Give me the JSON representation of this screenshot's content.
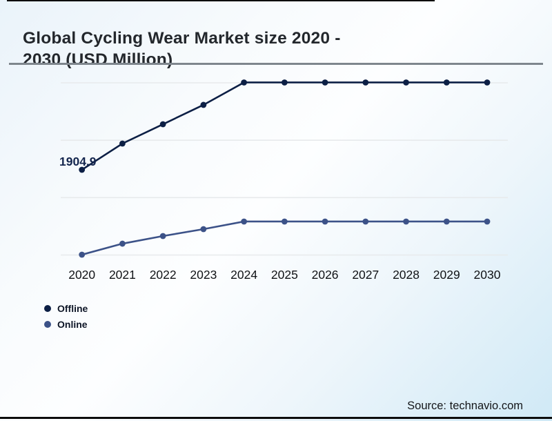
{
  "header": {
    "title_lines": [
      "Global Cycling Wear Market size 2020 -",
      "2030 (USD Million)"
    ]
  },
  "chart_data": {
    "type": "line",
    "title": "Global Cycling Wear Market size 2020 - 2030 (USD Million)",
    "categories": [
      "2020",
      "2021",
      "2022",
      "2023",
      "2024",
      "2025",
      "2026",
      "2027",
      "2028",
      "2029",
      "2030"
    ],
    "series": [
      {
        "name": "Offline",
        "color": "#0c1f45",
        "values": [
          1904.9,
          2360,
          2695,
          3031,
          3420,
          3420,
          3420,
          3420,
          3420,
          3420,
          3420
        ]
      },
      {
        "name": "Online",
        "color": "#3c5288",
        "values": [
          432,
          623,
          755,
          875,
          1007,
          1007,
          1007,
          1007,
          1007,
          1007,
          1007
        ]
      }
    ],
    "values_estimated": true,
    "visible_point_label": {
      "series": "Offline",
      "category": "2020",
      "text": "1904.9"
    },
    "y_axis_labels_visible": false,
    "gridlines": {
      "horizontal_count": 4,
      "color": "#e7eaec"
    },
    "legend_position": "bottom-left",
    "tick_label_color": "#101215",
    "point_label_color": "#14264e"
  },
  "legend": {
    "items": [
      {
        "label": "Offline",
        "color": "#0c1f45"
      },
      {
        "label": "Online",
        "color": "#3c5288"
      }
    ]
  },
  "footer": {
    "source": "Source: technavio.com"
  }
}
